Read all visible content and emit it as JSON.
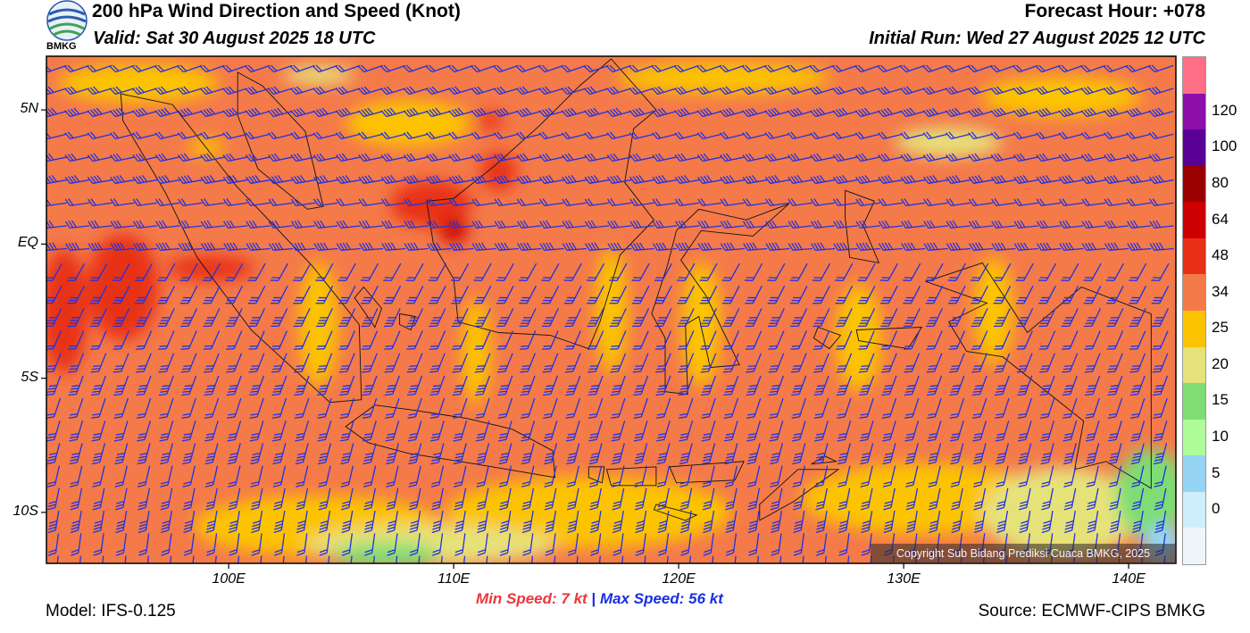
{
  "header": {
    "title": "200 hPa Wind Direction and Speed (Knot)",
    "valid": "Valid: Sat 30 August 2025 18 UTC",
    "forecast_hour": "Forecast Hour: +078",
    "initial_run": "Initial Run: Wed 27 August 2025 12 UTC",
    "logo_text": "BMKG"
  },
  "map": {
    "lat_labels": [
      {
        "label": "5N",
        "lat": 5
      },
      {
        "label": "EQ",
        "lat": 0
      },
      {
        "label": "5S",
        "lat": -5
      },
      {
        "label": "10S",
        "lat": -10
      }
    ],
    "lon_labels": [
      {
        "label": "100E",
        "lon": 100
      },
      {
        "label": "110E",
        "lon": 110
      },
      {
        "label": "120E",
        "lon": 120
      },
      {
        "label": "130E",
        "lon": 130
      },
      {
        "label": "140E",
        "lon": 140
      }
    ],
    "lon_range": [
      91.9,
      142.1
    ],
    "lat_range": [
      -11.9,
      7.0
    ],
    "copyright": "Copyright Sub Bidang Prediksi Cuaca BMKG, 2025",
    "barb_color": "#2233dd",
    "coast_color": "#111111"
  },
  "colorbar": {
    "levels": [
      {
        "label": "",
        "color": "#ff6f86"
      },
      {
        "label": "120",
        "color": "#8b0fa8"
      },
      {
        "label": "100",
        "color": "#5a0096"
      },
      {
        "label": "80",
        "color": "#9b0000"
      },
      {
        "label": "64",
        "color": "#cc0000"
      },
      {
        "label": "48",
        "color": "#e83018"
      },
      {
        "label": "34",
        "color": "#f47a4a"
      },
      {
        "label": "25",
        "color": "#fcc400"
      },
      {
        "label": "20",
        "color": "#e6e27a"
      },
      {
        "label": "15",
        "color": "#7edd74"
      },
      {
        "label": "10",
        "color": "#aefc9a"
      },
      {
        "label": "5",
        "color": "#96d4f6"
      },
      {
        "label": "0",
        "color": "#cfeefc"
      },
      {
        "label": "",
        "color": "#eef6fc"
      }
    ]
  },
  "footer": {
    "model": "Model: IFS-0.125",
    "source": "Source: ECMWF-CIPS BMKG",
    "min_label": "Min Speed:",
    "min_value": "7 kt",
    "separator": "|",
    "max_label": "Max Speed:",
    "max_value": "56 kt"
  }
}
